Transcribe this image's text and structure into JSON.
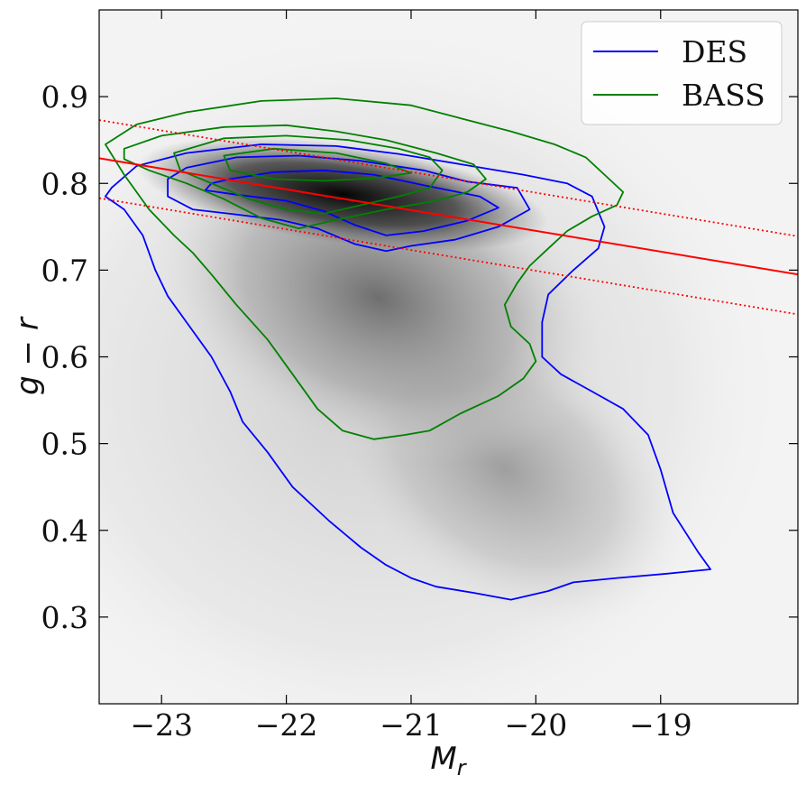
{
  "chart_data": {
    "type": "scatter",
    "subtype": "2d-density-histogram-with-contours",
    "xlabel": "M",
    "xlabel_sub": "r",
    "ylabel": "g − r",
    "xlim": [
      -23.5,
      -17.9
    ],
    "ylim": [
      0.2,
      1.0
    ],
    "x_ticks": [
      -23,
      -22,
      -21,
      -20,
      -19
    ],
    "x_tick_labels": [
      "−23",
      "−22",
      "−21",
      "−20",
      "−19"
    ],
    "y_ticks": [
      0.3,
      0.4,
      0.5,
      0.6,
      0.7,
      0.8,
      0.9
    ],
    "y_tick_labels": [
      "0.3",
      "0.4",
      "0.5",
      "0.6",
      "0.7",
      "0.8",
      "0.9"
    ],
    "background": {
      "name": "galaxy density",
      "colormap": "Greys",
      "peak": {
        "x": -21.7,
        "y": 0.785
      },
      "note": "density histogram of Mr vs g−r"
    },
    "series": [
      {
        "name": "DES",
        "color": "#0000ff",
        "contours": [
          [
            [
              -22.45,
              0.805
            ],
            [
              -22.1,
              0.813
            ],
            [
              -21.7,
              0.815
            ],
            [
              -21.3,
              0.81
            ],
            [
              -20.9,
              0.798
            ],
            [
              -20.45,
              0.785
            ],
            [
              -20.3,
              0.772
            ],
            [
              -20.55,
              0.757
            ],
            [
              -20.9,
              0.745
            ],
            [
              -21.2,
              0.74
            ],
            [
              -21.45,
              0.752
            ],
            [
              -21.7,
              0.768
            ],
            [
              -22.0,
              0.78
            ],
            [
              -22.4,
              0.787
            ],
            [
              -22.65,
              0.792
            ],
            [
              -22.6,
              0.8
            ]
          ],
          [
            [
              -22.8,
              0.818
            ],
            [
              -22.4,
              0.83
            ],
            [
              -21.9,
              0.832
            ],
            [
              -21.4,
              0.826
            ],
            [
              -20.9,
              0.815
            ],
            [
              -20.55,
              0.802
            ],
            [
              -20.15,
              0.795
            ],
            [
              -20.05,
              0.77
            ],
            [
              -20.3,
              0.75
            ],
            [
              -20.65,
              0.735
            ],
            [
              -21.0,
              0.728
            ],
            [
              -21.2,
              0.722
            ],
            [
              -21.45,
              0.73
            ],
            [
              -21.75,
              0.748
            ],
            [
              -22.05,
              0.758
            ],
            [
              -22.45,
              0.765
            ],
            [
              -22.75,
              0.77
            ],
            [
              -22.95,
              0.785
            ],
            [
              -22.95,
              0.805
            ]
          ],
          [
            [
              -23.4,
              0.795
            ],
            [
              -23.2,
              0.82
            ],
            [
              -22.8,
              0.835
            ],
            [
              -22.2,
              0.845
            ],
            [
              -21.6,
              0.843
            ],
            [
              -21.1,
              0.834
            ],
            [
              -20.6,
              0.822
            ],
            [
              -20.1,
              0.81
            ],
            [
              -19.75,
              0.8
            ],
            [
              -19.55,
              0.785
            ],
            [
              -19.45,
              0.75
            ],
            [
              -19.5,
              0.725
            ],
            [
              -19.7,
              0.7
            ],
            [
              -19.9,
              0.672
            ],
            [
              -19.95,
              0.64
            ],
            [
              -19.95,
              0.6
            ],
            [
              -19.8,
              0.58
            ],
            [
              -19.55,
              0.56
            ],
            [
              -19.3,
              0.54
            ],
            [
              -19.1,
              0.51
            ],
            [
              -19.0,
              0.47
            ],
            [
              -18.9,
              0.42
            ],
            [
              -18.7,
              0.375
            ],
            [
              -18.6,
              0.355
            ],
            [
              -18.95,
              0.35
            ],
            [
              -19.35,
              0.345
            ],
            [
              -19.7,
              0.34
            ],
            [
              -19.9,
              0.33
            ],
            [
              -20.2,
              0.32
            ],
            [
              -20.5,
              0.328
            ],
            [
              -20.8,
              0.335
            ],
            [
              -21.0,
              0.345
            ],
            [
              -21.2,
              0.36
            ],
            [
              -21.4,
              0.38
            ],
            [
              -21.65,
              0.41
            ],
            [
              -21.95,
              0.45
            ],
            [
              -22.15,
              0.49
            ],
            [
              -22.35,
              0.525
            ],
            [
              -22.45,
              0.56
            ],
            [
              -22.6,
              0.6
            ],
            [
              -22.8,
              0.64
            ],
            [
              -22.95,
              0.67
            ],
            [
              -23.05,
              0.7
            ],
            [
              -23.15,
              0.74
            ],
            [
              -23.3,
              0.77
            ],
            [
              -23.45,
              0.785
            ]
          ]
        ]
      },
      {
        "name": "BASS",
        "color": "#008000",
        "contours": [
          [
            [
              -22.5,
              0.832
            ],
            [
              -22.1,
              0.84
            ],
            [
              -21.6,
              0.835
            ],
            [
              -21.2,
              0.823
            ],
            [
              -21.0,
              0.812
            ],
            [
              -21.3,
              0.806
            ],
            [
              -21.7,
              0.803
            ],
            [
              -22.1,
              0.805
            ],
            [
              -22.45,
              0.815
            ]
          ],
          [
            [
              -22.9,
              0.835
            ],
            [
              -22.5,
              0.852
            ],
            [
              -22.0,
              0.855
            ],
            [
              -21.5,
              0.85
            ],
            [
              -21.1,
              0.84
            ],
            [
              -20.85,
              0.83
            ],
            [
              -20.75,
              0.815
            ],
            [
              -20.85,
              0.795
            ],
            [
              -21.1,
              0.785
            ],
            [
              -21.4,
              0.775
            ],
            [
              -21.7,
              0.765
            ],
            [
              -22.0,
              0.77
            ],
            [
              -22.3,
              0.782
            ],
            [
              -22.6,
              0.8
            ],
            [
              -22.85,
              0.815
            ]
          ],
          [
            [
              -23.3,
              0.84
            ],
            [
              -23.0,
              0.855
            ],
            [
              -22.5,
              0.865
            ],
            [
              -22.0,
              0.867
            ],
            [
              -21.6,
              0.86
            ],
            [
              -21.2,
              0.85
            ],
            [
              -20.8,
              0.835
            ],
            [
              -20.5,
              0.822
            ],
            [
              -20.4,
              0.805
            ],
            [
              -20.55,
              0.79
            ],
            [
              -20.8,
              0.78
            ],
            [
              -21.2,
              0.77
            ],
            [
              -21.6,
              0.758
            ],
            [
              -21.9,
              0.748
            ],
            [
              -22.2,
              0.76
            ],
            [
              -22.5,
              0.782
            ],
            [
              -22.8,
              0.8
            ],
            [
              -23.1,
              0.815
            ],
            [
              -23.3,
              0.828
            ]
          ],
          [
            [
              -23.45,
              0.845
            ],
            [
              -23.2,
              0.868
            ],
            [
              -22.8,
              0.882
            ],
            [
              -22.2,
              0.895
            ],
            [
              -21.6,
              0.898
            ],
            [
              -21.0,
              0.89
            ],
            [
              -20.6,
              0.875
            ],
            [
              -20.2,
              0.86
            ],
            [
              -19.85,
              0.845
            ],
            [
              -19.6,
              0.83
            ],
            [
              -19.45,
              0.81
            ],
            [
              -19.3,
              0.79
            ],
            [
              -19.35,
              0.775
            ],
            [
              -19.55,
              0.762
            ],
            [
              -19.75,
              0.745
            ],
            [
              -19.9,
              0.725
            ],
            [
              -20.05,
              0.705
            ],
            [
              -20.15,
              0.685
            ],
            [
              -20.25,
              0.66
            ],
            [
              -20.2,
              0.635
            ],
            [
              -20.05,
              0.615
            ],
            [
              -20.0,
              0.595
            ],
            [
              -20.1,
              0.575
            ],
            [
              -20.3,
              0.555
            ],
            [
              -20.6,
              0.535
            ],
            [
              -20.85,
              0.515
            ],
            [
              -21.05,
              0.51
            ],
            [
              -21.3,
              0.505
            ],
            [
              -21.55,
              0.515
            ],
            [
              -21.75,
              0.54
            ],
            [
              -21.95,
              0.58
            ],
            [
              -22.15,
              0.62
            ],
            [
              -22.4,
              0.66
            ],
            [
              -22.6,
              0.695
            ],
            [
              -22.75,
              0.72
            ],
            [
              -22.9,
              0.74
            ],
            [
              -23.1,
              0.77
            ],
            [
              -23.3,
              0.81
            ]
          ]
        ]
      }
    ],
    "lines": [
      {
        "name": "red sequence fit",
        "color": "#ff0000",
        "style": "solid",
        "x": [
          -23.5,
          -17.9
        ],
        "y": [
          0.829,
          0.695
        ]
      },
      {
        "name": "upper bound",
        "color": "#ff0000",
        "style": "dotted",
        "x": [
          -23.5,
          -17.9
        ],
        "y": [
          0.873,
          0.739
        ]
      },
      {
        "name": "lower bound",
        "color": "#ff0000",
        "style": "dotted",
        "x": [
          -23.5,
          -17.9
        ],
        "y": [
          0.783,
          0.649
        ]
      }
    ],
    "legend": {
      "position": "top-right",
      "entries": [
        {
          "label": "DES",
          "color": "#0000ff"
        },
        {
          "label": "BASS",
          "color": "#008000"
        }
      ]
    }
  }
}
